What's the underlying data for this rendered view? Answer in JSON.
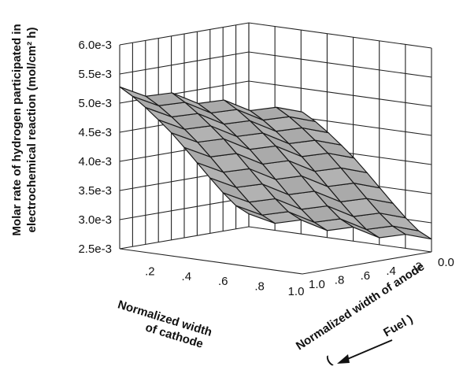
{
  "chart_data": {
    "type": "surface",
    "z_label_line1": "Molar rate of hydrogen participated in",
    "z_label_line2": "electrochemical reaction (mol/cm² h)",
    "z_ticks": [
      "2.5e-3",
      "3.0e-3",
      "3.5e-3",
      "4.0e-3",
      "4.5e-3",
      "5.0e-3",
      "5.5e-3",
      "6.0e-3"
    ],
    "zlim": [
      0.0025,
      0.006
    ],
    "x_label_line1": "Normalized width",
    "x_label_line2": "of cathode",
    "x_ticks": [
      ".2",
      ".4",
      ".6",
      ".8",
      "1.0"
    ],
    "y_label": "Normalized width of anode",
    "y_ticks": [
      "0.0",
      ".2",
      ".4",
      ".6",
      ".8",
      "1.0"
    ],
    "fuel_label": "Fuel )",
    "fuel_paren": "(",
    "anode_positions": [
      0.0,
      0.1,
      0.2,
      0.3,
      0.4,
      0.5,
      0.6,
      0.7,
      0.8,
      0.9,
      1.0
    ],
    "cathode_positions": [
      0.0,
      0.143,
      0.286,
      0.429,
      0.571,
      0.714,
      0.857,
      1.0
    ],
    "anode_profile": [
      0.00272,
      0.0029,
      0.00316,
      0.00345,
      0.00375,
      0.00405,
      0.00434,
      0.0046,
      0.00485,
      0.00508,
      0.00528
    ],
    "cathode_offsets": [
      0.0,
      -0.0001,
      2e-05,
      -0.0001,
      2e-05,
      -0.0001,
      2e-05,
      0.0
    ]
  }
}
